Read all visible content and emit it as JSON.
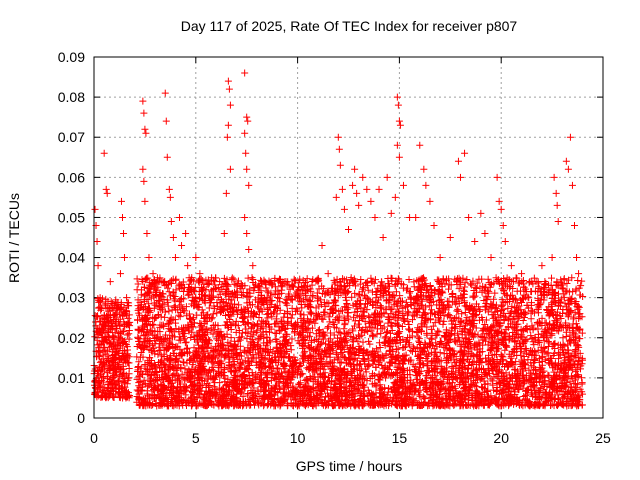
{
  "chart_data": {
    "type": "scatter",
    "title": "Day 117 of 2025, Rate Of TEC Index for receiver p807",
    "xlabel": "GPS time / hours",
    "ylabel": "ROTI / TECUs",
    "xlim": [
      0,
      25
    ],
    "ylim": [
      0,
      0.09
    ],
    "xticks": [
      0,
      5,
      10,
      15,
      20,
      25
    ],
    "xtick_labels": [
      "0",
      "5",
      "10",
      "15",
      "20",
      "25"
    ],
    "yticks": [
      0,
      0.01,
      0.02,
      0.03,
      0.04,
      0.05,
      0.06,
      0.07,
      0.08,
      0.09
    ],
    "ytick_labels": [
      "0",
      "0.01",
      "0.02",
      "0.03",
      "0.04",
      "0.05",
      "0.06",
      "0.07",
      "0.08",
      "0.09"
    ],
    "grid": true,
    "marker": "+",
    "color": "#ff0000",
    "series": [
      {
        "values_note": "",
        "points": [
          [
            0.05,
            0.052
          ],
          [
            0.1,
            0.048
          ],
          [
            0.15,
            0.044
          ],
          [
            0.2,
            0.038
          ],
          [
            0.3,
            0.03
          ],
          [
            0.5,
            0.066
          ],
          [
            0.6,
            0.057
          ],
          [
            0.65,
            0.056
          ],
          [
            0.8,
            0.034
          ],
          [
            1.0,
            0.028
          ],
          [
            1.2,
            0.024
          ],
          [
            1.3,
            0.036
          ],
          [
            1.35,
            0.054
          ],
          [
            1.4,
            0.05
          ],
          [
            1.45,
            0.046
          ],
          [
            1.5,
            0.04
          ],
          [
            1.6,
            0.03
          ],
          [
            1.7,
            0.028
          ],
          [
            2.4,
            0.079
          ],
          [
            2.45,
            0.076
          ],
          [
            2.5,
            0.072
          ],
          [
            2.55,
            0.071
          ],
          [
            2.4,
            0.062
          ],
          [
            2.45,
            0.059
          ],
          [
            2.5,
            0.054
          ],
          [
            2.6,
            0.046
          ],
          [
            2.7,
            0.04
          ],
          [
            2.9,
            0.036
          ],
          [
            3.2,
            0.034
          ],
          [
            3.5,
            0.081
          ],
          [
            3.55,
            0.074
          ],
          [
            3.6,
            0.065
          ],
          [
            3.7,
            0.057
          ],
          [
            3.75,
            0.055
          ],
          [
            3.8,
            0.049
          ],
          [
            3.9,
            0.045
          ],
          [
            4.0,
            0.04
          ],
          [
            4.2,
            0.05
          ],
          [
            4.3,
            0.043
          ],
          [
            4.5,
            0.046
          ],
          [
            4.6,
            0.038
          ],
          [
            4.8,
            0.035
          ],
          [
            5.0,
            0.04
          ],
          [
            5.2,
            0.036
          ],
          [
            5.5,
            0.032
          ],
          [
            5.8,
            0.03
          ],
          [
            6.4,
            0.046
          ],
          [
            6.5,
            0.056
          ],
          [
            6.6,
            0.084
          ],
          [
            6.65,
            0.082
          ],
          [
            6.7,
            0.078
          ],
          [
            6.6,
            0.073
          ],
          [
            6.55,
            0.07
          ],
          [
            6.7,
            0.062
          ],
          [
            7.4,
            0.086
          ],
          [
            7.5,
            0.075
          ],
          [
            7.55,
            0.074
          ],
          [
            7.4,
            0.071
          ],
          [
            7.45,
            0.066
          ],
          [
            7.5,
            0.062
          ],
          [
            7.6,
            0.058
          ],
          [
            7.4,
            0.05
          ],
          [
            7.5,
            0.046
          ],
          [
            7.6,
            0.042
          ],
          [
            7.8,
            0.038
          ],
          [
            8.1,
            0.033
          ],
          [
            8.5,
            0.03
          ],
          [
            9.0,
            0.028
          ],
          [
            9.5,
            0.026
          ],
          [
            10.0,
            0.03
          ],
          [
            10.5,
            0.032
          ],
          [
            11.0,
            0.034
          ],
          [
            11.2,
            0.043
          ],
          [
            11.5,
            0.036
          ],
          [
            11.9,
            0.055
          ],
          [
            12.0,
            0.07
          ],
          [
            12.05,
            0.067
          ],
          [
            12.1,
            0.063
          ],
          [
            12.2,
            0.057
          ],
          [
            12.3,
            0.052
          ],
          [
            12.5,
            0.047
          ],
          [
            12.7,
            0.058
          ],
          [
            12.8,
            0.062
          ],
          [
            12.9,
            0.056
          ],
          [
            13.0,
            0.053
          ],
          [
            13.2,
            0.06
          ],
          [
            13.4,
            0.057
          ],
          [
            13.6,
            0.054
          ],
          [
            13.8,
            0.05
          ],
          [
            14.0,
            0.057
          ],
          [
            14.2,
            0.045
          ],
          [
            14.4,
            0.06
          ],
          [
            14.6,
            0.051
          ],
          [
            14.8,
            0.055
          ],
          [
            14.9,
            0.08
          ],
          [
            14.95,
            0.078
          ],
          [
            15.0,
            0.074
          ],
          [
            15.05,
            0.073
          ],
          [
            14.9,
            0.068
          ],
          [
            15.0,
            0.065
          ],
          [
            15.2,
            0.058
          ],
          [
            15.5,
            0.05
          ],
          [
            15.8,
            0.05
          ],
          [
            16.0,
            0.068
          ],
          [
            16.2,
            0.062
          ],
          [
            16.3,
            0.058
          ],
          [
            16.5,
            0.054
          ],
          [
            16.7,
            0.048
          ],
          [
            17.0,
            0.04
          ],
          [
            17.5,
            0.045
          ],
          [
            17.9,
            0.064
          ],
          [
            18.0,
            0.06
          ],
          [
            18.2,
            0.066
          ],
          [
            18.4,
            0.05
          ],
          [
            18.7,
            0.044
          ],
          [
            19.0,
            0.051
          ],
          [
            19.2,
            0.046
          ],
          [
            19.5,
            0.04
          ],
          [
            19.8,
            0.06
          ],
          [
            19.9,
            0.054
          ],
          [
            20.0,
            0.052
          ],
          [
            20.1,
            0.048
          ],
          [
            20.2,
            0.044
          ],
          [
            20.5,
            0.038
          ],
          [
            21.0,
            0.036
          ],
          [
            21.5,
            0.034
          ],
          [
            22.0,
            0.038
          ],
          [
            22.5,
            0.04
          ],
          [
            22.6,
            0.06
          ],
          [
            22.7,
            0.056
          ],
          [
            22.75,
            0.053
          ],
          [
            22.8,
            0.049
          ],
          [
            23.2,
            0.064
          ],
          [
            23.4,
            0.07
          ],
          [
            23.3,
            0.062
          ],
          [
            23.5,
            0.058
          ],
          [
            23.6,
            0.048
          ],
          [
            23.7,
            0.04
          ],
          [
            23.8,
            0.036
          ],
          [
            23.9,
            0.033
          ]
        ]
      }
    ],
    "dense_band": {
      "segments": [
        [
          0.0,
          1.75,
          0.005,
          0.03
        ],
        [
          2.1,
          24.0,
          0.003,
          0.035
        ]
      ]
    }
  }
}
